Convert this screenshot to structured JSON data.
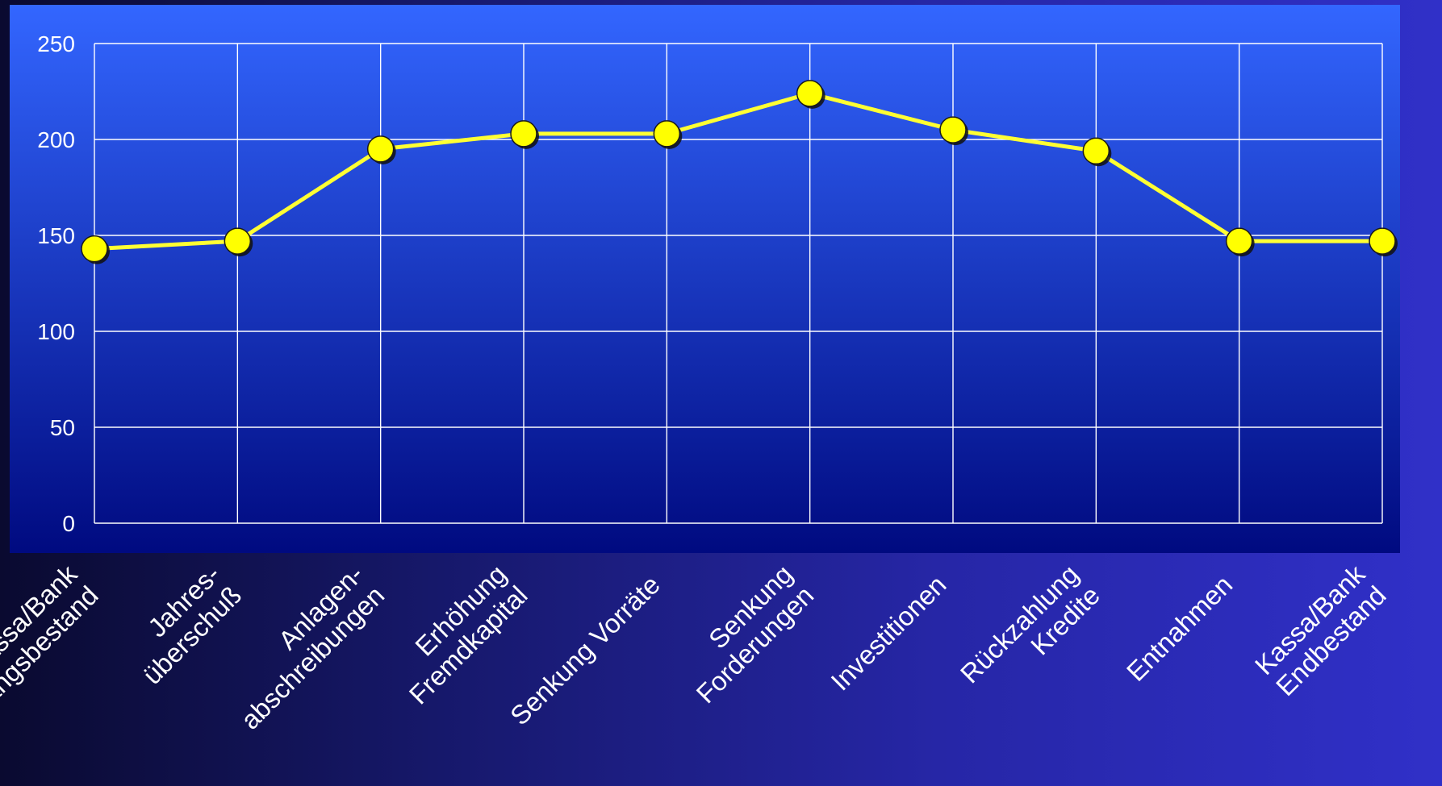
{
  "chart_data": {
    "type": "line",
    "title": "",
    "xlabel": "",
    "ylabel": "",
    "ylim": [
      0,
      250
    ],
    "yticks": [
      0,
      50,
      100,
      150,
      200,
      250
    ],
    "grid": true,
    "legend": "none",
    "categories": [
      [
        "Kassa/Bank",
        "Anfangsbestand"
      ],
      [
        "Jahres-",
        "überschuß"
      ],
      [
        "Anlagen-",
        "abschreibungen"
      ],
      [
        "Erhöhung",
        "Fremdkapital"
      ],
      [
        "Senkung Vorräte"
      ],
      [
        "Senkung",
        "Forderungen"
      ],
      [
        "Investitionen"
      ],
      [
        "Rückzahlung",
        "Kredite"
      ],
      [
        "Entnahmen"
      ],
      [
        "Kassa/Bank",
        "Endbestand"
      ]
    ],
    "series": [
      {
        "values": [
          143,
          147,
          195,
          203,
          203,
          224,
          205,
          194,
          147,
          147
        ]
      }
    ],
    "colors": {
      "line": "#ffff33",
      "marker_fill": "#ffff00",
      "marker_stroke": "#1a1a1a",
      "grid": "#ffffff",
      "plot_top": "#3366ff",
      "plot_bottom": "#000a80",
      "text": "#ffffff"
    }
  }
}
